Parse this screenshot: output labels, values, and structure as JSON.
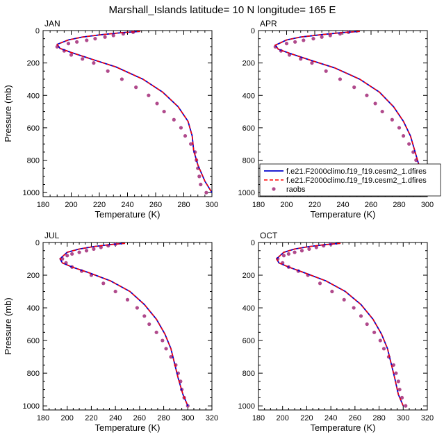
{
  "title": "Marshall_Islands  latitude= 10 N longitude= 165 E",
  "colors": {
    "model1": "#0000cc",
    "model2": "#ff0000",
    "obs": "#b04a8c"
  },
  "legend": {
    "placement": "inside-bottom of APR panel",
    "entries": [
      {
        "label": "f.e21.F2000climo.f19_f19.cesm2_1.dfires",
        "style": "solid-line"
      },
      {
        "label": "f.e21.F2000climo.f19_f19.cesm2_1.dfires",
        "style": "dashed-line"
      },
      {
        "label": "raobs",
        "style": "marker"
      }
    ]
  },
  "chart_data": [
    {
      "type": "line",
      "panel": "JAN",
      "xlabel": "Temperature (K)",
      "ylabel": "Pressure (mb)",
      "xlim": [
        180,
        300
      ],
      "ylim": [
        0,
        1025
      ],
      "y_reversed": true,
      "xticks": [
        180,
        200,
        220,
        240,
        260,
        280,
        300
      ],
      "yticks": [
        0,
        200,
        400,
        600,
        800,
        1000
      ],
      "series": [
        {
          "name": "f.e21.F2000climo.f19_f19.cesm2_1.dfires",
          "style": "solid",
          "x": [
            249,
            236,
            222,
            208,
            198,
            190,
            192,
            200,
            214,
            232,
            251,
            265,
            276,
            283,
            286,
            287,
            290,
            295,
            300
          ],
          "y": [
            5,
            13,
            25,
            40,
            58,
            85,
            110,
            135,
            175,
            225,
            300,
            380,
            470,
            560,
            650,
            740,
            830,
            930,
            1000
          ]
        },
        {
          "name": "f.e21.F2000climo.f19_f19.cesm2_1.dfires",
          "style": "dashed",
          "x": [
            249,
            236,
            222,
            208,
            198,
            190,
            192,
            200,
            214,
            232,
            251,
            265,
            276,
            283,
            286,
            287,
            290,
            295,
            300
          ],
          "y": [
            5,
            13,
            25,
            40,
            58,
            85,
            110,
            135,
            175,
            225,
            300,
            380,
            470,
            560,
            650,
            740,
            830,
            930,
            1000
          ]
        },
        {
          "name": "raobs",
          "style": "markers",
          "x": [
            244,
            237,
            230,
            224,
            217,
            211,
            204,
            198,
            190,
            195,
            200,
            208,
            216,
            226,
            236,
            246,
            255,
            261,
            266,
            273,
            278,
            281,
            285,
            288,
            289,
            290,
            291,
            292,
            296
          ],
          "y": [
            10,
            20,
            30,
            40,
            50,
            60,
            70,
            80,
            100,
            125,
            150,
            175,
            200,
            250,
            300,
            350,
            400,
            450,
            500,
            550,
            600,
            650,
            700,
            750,
            800,
            850,
            900,
            950,
            1000
          ]
        }
      ]
    },
    {
      "type": "line",
      "panel": "APR",
      "xlabel": "Temperature (K)",
      "ylabel": "",
      "xlim": [
        180,
        300
      ],
      "ylim": [
        0,
        1025
      ],
      "y_reversed": true,
      "xticks": [
        180,
        200,
        220,
        240,
        260,
        280,
        300
      ],
      "yticks": [
        0,
        200,
        400,
        600,
        800,
        1000
      ],
      "series": [
        {
          "name": "f.e21.F2000climo.f19_f19.cesm2_1.dfires",
          "style": "solid",
          "x": [
            252,
            239,
            225,
            210,
            200,
            192,
            194,
            202,
            216,
            234,
            252,
            266,
            276,
            283,
            288,
            291,
            294,
            297,
            300
          ],
          "y": [
            5,
            13,
            25,
            40,
            58,
            90,
            115,
            140,
            180,
            230,
            300,
            380,
            470,
            560,
            650,
            740,
            830,
            930,
            1000
          ]
        },
        {
          "name": "f.e21.F2000climo.f19_f19.cesm2_1.dfires",
          "style": "dashed",
          "x": [
            252,
            239,
            225,
            210,
            200,
            192,
            194,
            202,
            216,
            234,
            252,
            266,
            276,
            283,
            288,
            291,
            294,
            297,
            300
          ],
          "y": [
            5,
            13,
            25,
            40,
            58,
            90,
            115,
            140,
            180,
            230,
            300,
            380,
            470,
            560,
            650,
            740,
            830,
            930,
            1000
          ]
        },
        {
          "name": "raobs",
          "style": "markers",
          "x": [
            244,
            238,
            231,
            225,
            219,
            212,
            206,
            200,
            192,
            196,
            202,
            210,
            218,
            228,
            238,
            248,
            257,
            263,
            268,
            275,
            280,
            283,
            287,
            290,
            292,
            294,
            296,
            298,
            300
          ],
          "y": [
            10,
            20,
            30,
            40,
            50,
            60,
            70,
            80,
            100,
            125,
            150,
            175,
            200,
            250,
            300,
            350,
            400,
            450,
            500,
            550,
            600,
            650,
            700,
            750,
            800,
            850,
            900,
            950,
            1000
          ]
        }
      ]
    },
    {
      "type": "line",
      "panel": "JUL",
      "xlabel": "Temperature (K)",
      "ylabel": "Pressure (mb)",
      "xlim": [
        180,
        320
      ],
      "ylim": [
        0,
        1025
      ],
      "y_reversed": true,
      "xticks": [
        180,
        200,
        220,
        240,
        260,
        280,
        300,
        320
      ],
      "yticks": [
        0,
        200,
        400,
        600,
        800,
        1000
      ],
      "series": [
        {
          "name": "f.e21.F2000climo.f19_f19.cesm2_1.dfires",
          "style": "solid",
          "x": [
            248,
            235,
            222,
            210,
            200,
            194,
            196,
            204,
            218,
            236,
            252,
            264,
            274,
            281,
            286,
            289,
            292,
            296,
            300
          ],
          "y": [
            5,
            13,
            25,
            40,
            60,
            100,
            125,
            150,
            185,
            235,
            300,
            380,
            470,
            560,
            650,
            740,
            830,
            930,
            1000
          ]
        },
        {
          "name": "f.e21.F2000climo.f19_f19.cesm2_1.dfires",
          "style": "dashed",
          "x": [
            248,
            235,
            222,
            210,
            200,
            194,
            196,
            204,
            218,
            236,
            252,
            264,
            274,
            281,
            286,
            289,
            292,
            296,
            300
          ],
          "y": [
            5,
            13,
            25,
            40,
            60,
            100,
            125,
            150,
            185,
            235,
            300,
            380,
            470,
            560,
            650,
            740,
            830,
            930,
            1000
          ]
        },
        {
          "name": "raobs",
          "style": "markers",
          "x": [
            240,
            234,
            228,
            222,
            216,
            210,
            204,
            200,
            196,
            199,
            204,
            212,
            220,
            230,
            240,
            250,
            258,
            264,
            268,
            274,
            279,
            282,
            286,
            290,
            292,
            294,
            295,
            297,
            300
          ],
          "y": [
            10,
            20,
            30,
            40,
            50,
            60,
            70,
            80,
            100,
            125,
            150,
            175,
            200,
            250,
            300,
            350,
            400,
            450,
            500,
            550,
            600,
            650,
            700,
            750,
            800,
            850,
            900,
            950,
            1000
          ]
        }
      ]
    },
    {
      "type": "line",
      "panel": "OCT",
      "xlabel": "Temperature (K)",
      "ylabel": "",
      "xlim": [
        180,
        320
      ],
      "ylim": [
        0,
        1025
      ],
      "y_reversed": true,
      "xticks": [
        180,
        200,
        220,
        240,
        260,
        280,
        300,
        320
      ],
      "yticks": [
        0,
        200,
        400,
        600,
        800,
        1000
      ],
      "series": [
        {
          "name": "f.e21.F2000climo.f19_f19.cesm2_1.dfires",
          "style": "solid",
          "x": [
            248,
            235,
            222,
            210,
            201,
            195,
            197,
            205,
            218,
            236,
            252,
            265,
            275,
            282,
            287,
            290,
            293,
            296,
            300
          ],
          "y": [
            5,
            13,
            25,
            40,
            60,
            100,
            125,
            150,
            185,
            235,
            300,
            380,
            470,
            560,
            650,
            740,
            830,
            930,
            1000
          ]
        },
        {
          "name": "f.e21.F2000climo.f19_f19.cesm2_1.dfires",
          "style": "dashed",
          "x": [
            248,
            235,
            222,
            210,
            201,
            195,
            197,
            205,
            218,
            236,
            252,
            265,
            275,
            282,
            287,
            290,
            293,
            296,
            300
          ],
          "y": [
            5,
            13,
            25,
            40,
            60,
            100,
            125,
            150,
            185,
            235,
            300,
            380,
            470,
            560,
            650,
            740,
            830,
            930,
            1000
          ]
        },
        {
          "name": "raobs",
          "style": "markers",
          "x": [
            240,
            234,
            228,
            222,
            216,
            210,
            205,
            201,
            196,
            200,
            205,
            213,
            221,
            231,
            241,
            251,
            259,
            265,
            270,
            276,
            281,
            284,
            288,
            292,
            294,
            296,
            297,
            299,
            302
          ],
          "y": [
            10,
            20,
            30,
            40,
            50,
            60,
            70,
            80,
            100,
            125,
            150,
            175,
            200,
            250,
            300,
            350,
            400,
            450,
            500,
            550,
            600,
            650,
            700,
            750,
            800,
            850,
            900,
            950,
            1000
          ]
        }
      ]
    }
  ]
}
